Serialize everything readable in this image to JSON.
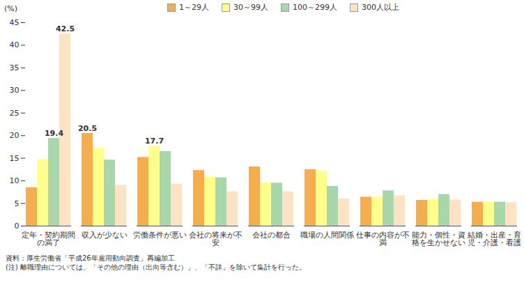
{
  "chart_data": {
    "type": "bar",
    "y_unit_label": "(%)",
    "categories": [
      "定年・契約期間の満了",
      "収入が少ない",
      "労働条件が悪い",
      "会社の将来が不安",
      "会社の都合",
      "職場の人間関係",
      "仕事の内容が不満",
      "能力・個性・資格を生かせない",
      "結婚・出産・育児・介護・看護"
    ],
    "series": [
      {
        "name": "1～29人",
        "color": "#f6ad4e",
        "values": [
          8.5,
          20.5,
          15.2,
          12.3,
          13.1,
          12.5,
          6.4,
          5.7,
          5.3
        ],
        "value_labels": [
          null,
          "20.5",
          null,
          null,
          null,
          null,
          null,
          null,
          null
        ]
      },
      {
        "name": "30～99人",
        "color": "#ffff8a",
        "values": [
          14.7,
          17.2,
          17.7,
          10.8,
          9.5,
          12.2,
          6.4,
          5.9,
          5.3
        ],
        "value_labels": [
          null,
          null,
          "17.7",
          null,
          null,
          null,
          null,
          null,
          null
        ]
      },
      {
        "name": "100～299人",
        "color": "#a9d6aa",
        "values": [
          19.4,
          14.6,
          16.5,
          10.7,
          9.5,
          8.8,
          7.8,
          7.0,
          5.3
        ],
        "value_labels": [
          "19.4",
          null,
          null,
          null,
          null,
          null,
          null,
          null,
          null
        ]
      },
      {
        "name": "300人以上",
        "color": "#fde2c4",
        "values": [
          42.5,
          9.0,
          9.3,
          7.6,
          7.6,
          6.0,
          6.7,
          5.8,
          5.2
        ],
        "value_labels": [
          "42.5",
          null,
          null,
          null,
          null,
          null,
          null,
          null,
          null
        ]
      }
    ],
    "ylim": [
      0,
      45
    ],
    "yticks": [
      0,
      5,
      10,
      15,
      20,
      25,
      30,
      35,
      40,
      45
    ],
    "grid": false,
    "legend": "top",
    "notes": [
      "資料：厚生労働省「平成26年雇用動向調査」再編加工",
      "(注) 離職理由については、「その他の理由（出向等含む）」、「不詳」を除いて集計を行った。"
    ]
  }
}
